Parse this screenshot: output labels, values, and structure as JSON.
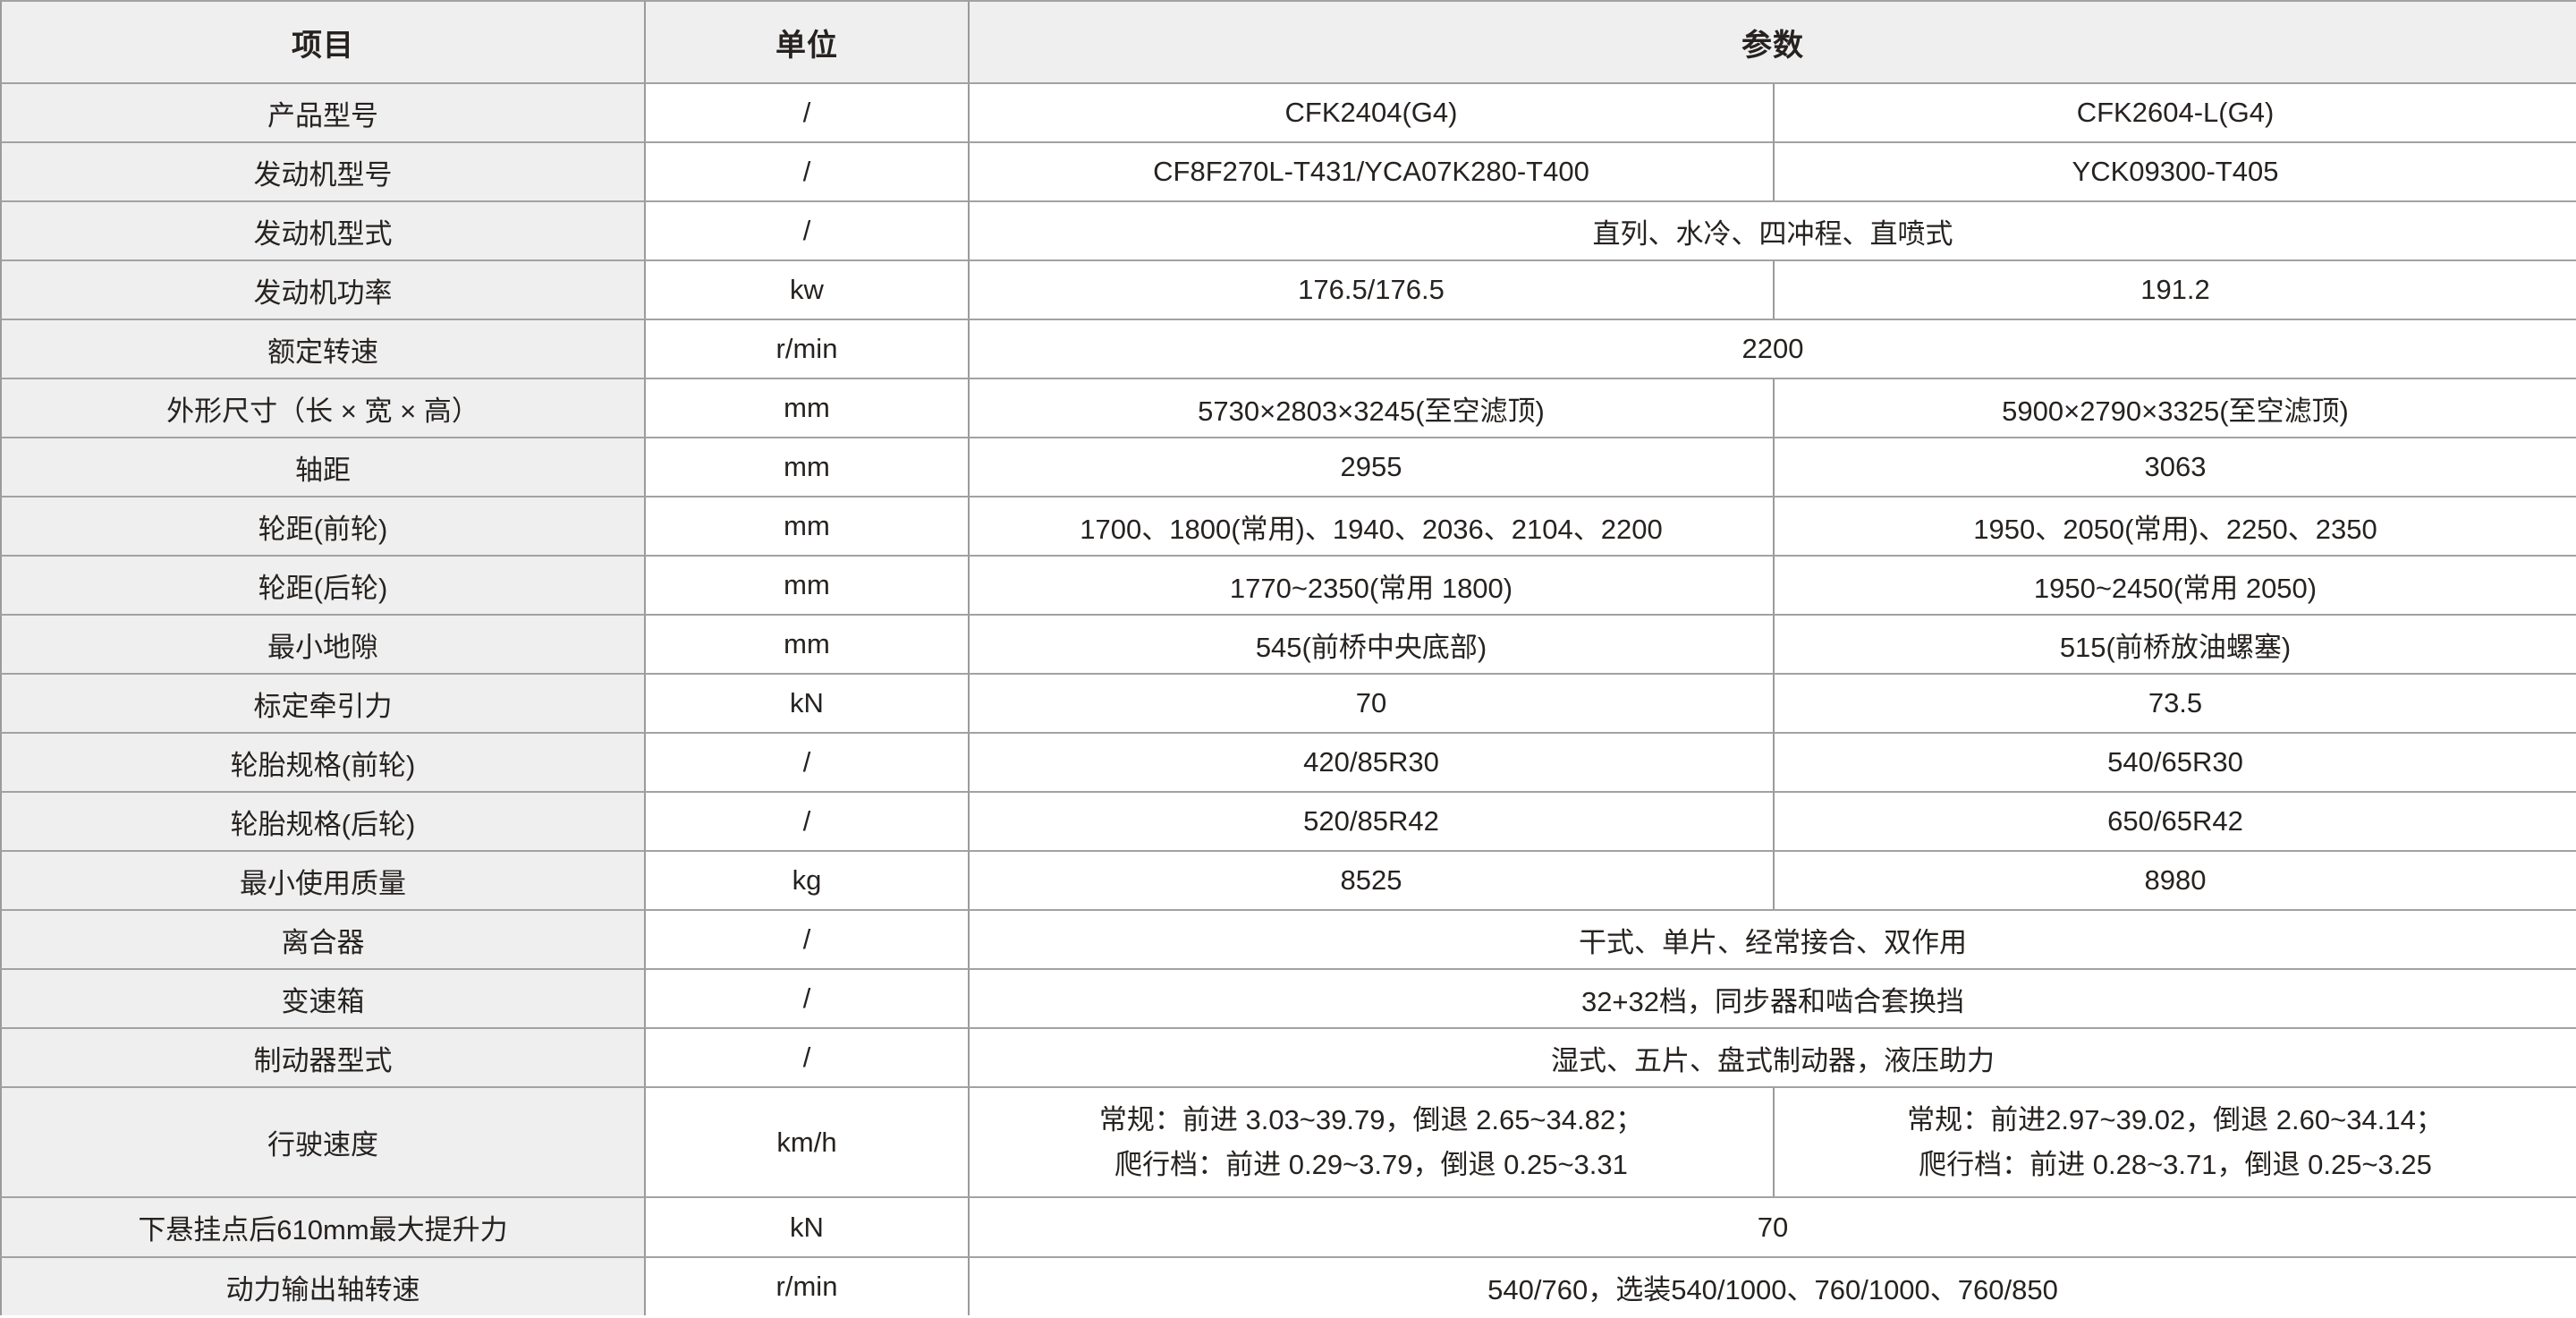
{
  "colors": {
    "label_bg": "#efefef",
    "header_bg": "#efefef",
    "cell_bg": "#ffffff",
    "border": "#a2a2a2",
    "text": "#262220"
  },
  "table": {
    "headers": {
      "item": "项目",
      "unit": "单位",
      "param": "参数"
    },
    "rows": [
      {
        "item": "产品型号",
        "unit": "/",
        "values": [
          "CFK2404(G4)",
          "CFK2604-L(G4)"
        ]
      },
      {
        "item": "发动机型号",
        "unit": "/",
        "values": [
          "CF8F270L-T431/YCA07K280-T400",
          "YCK09300-T405"
        ]
      },
      {
        "item": "发动机型式",
        "unit": "/",
        "span": "直列、水冷、四冲程、直喷式"
      },
      {
        "item": "发动机功率",
        "unit": "kw",
        "values": [
          "176.5/176.5",
          "191.2"
        ]
      },
      {
        "item": "额定转速",
        "unit": "r/min",
        "span": "2200"
      },
      {
        "item": "外形尺寸（长 × 宽 × 高）",
        "unit": "mm",
        "values": [
          "5730×2803×3245(至空滤顶)",
          "5900×2790×3325(至空滤顶)"
        ]
      },
      {
        "item": "轴距",
        "unit": "mm",
        "values": [
          "2955",
          "3063"
        ]
      },
      {
        "item": "轮距(前轮)",
        "unit": "mm",
        "values": [
          "1700、1800(常用)、1940、2036、2104、2200",
          "1950、2050(常用)、2250、2350"
        ]
      },
      {
        "item": "轮距(后轮)",
        "unit": "mm",
        "values": [
          "1770~2350(常用 1800)",
          "1950~2450(常用 2050)"
        ]
      },
      {
        "item": "最小地隙",
        "unit": "mm",
        "values": [
          "545(前桥中央底部)",
          "515(前桥放油螺塞)"
        ]
      },
      {
        "item": "标定牵引力",
        "unit": "kN",
        "values": [
          "70",
          "73.5"
        ]
      },
      {
        "item": "轮胎规格(前轮)",
        "unit": "/",
        "values": [
          "420/85R30",
          "540/65R30"
        ]
      },
      {
        "item": "轮胎规格(后轮)",
        "unit": "/",
        "values": [
          "520/85R42",
          "650/65R42"
        ]
      },
      {
        "item": "最小使用质量",
        "unit": "kg",
        "values": [
          "8525",
          "8980"
        ]
      },
      {
        "item": "离合器",
        "unit": "/",
        "span": "干式、单片、经常接合、双作用"
      },
      {
        "item": "变速箱",
        "unit": "/",
        "span": "32+32档，同步器和啮合套换挡"
      },
      {
        "item": "制动器型式",
        "unit": "/",
        "span": "湿式、五片、盘式制动器，液压助力"
      },
      {
        "item": "行驶速度",
        "unit": "km/h",
        "values": [
          "常规：前进 3.03~39.79，倒退 2.65~34.82；\n爬行档：前进 0.29~3.79，倒退 0.25~3.31",
          "常规：前进2.97~39.02，倒退 2.60~34.14；\n爬行档：前进 0.28~3.71，倒退 0.25~3.25"
        ]
      },
      {
        "item": "下悬挂点后610mm最大提升力",
        "unit": "kN",
        "span": "70"
      },
      {
        "item": "动力输出轴转速",
        "unit": "r/min",
        "span": "540/760，选装540/1000、760/1000、760/850"
      }
    ]
  }
}
